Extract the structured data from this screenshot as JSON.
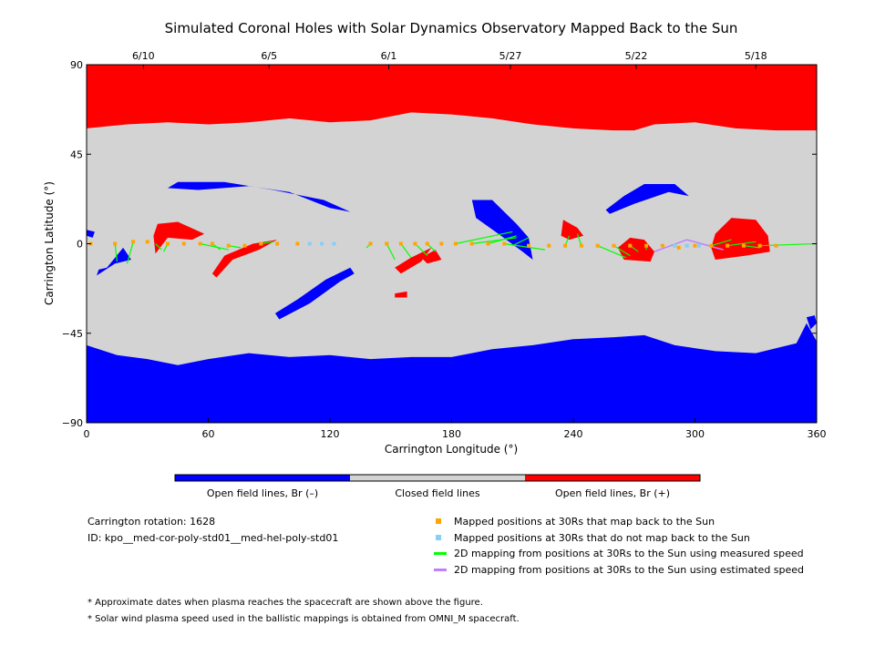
{
  "chart_data": {
    "type": "map",
    "title": "Simulated Coronal Holes with Solar Dynamics Observatory Mapped Back to the Sun",
    "xlabel": "Carrington Longitude (°)",
    "ylabel": "Carrington Latitude (°)",
    "xlim": [
      0,
      360
    ],
    "ylim": [
      -90,
      90
    ],
    "x_ticks": [
      "0",
      "60",
      "120",
      "180",
      "240",
      "300",
      "360"
    ],
    "y_ticks": [
      "90",
      "45",
      "0",
      "-45",
      "-90"
    ],
    "top_dates": [
      {
        "label": "6/10",
        "lon": 28
      },
      {
        "label": "6/5",
        "lon": 90
      },
      {
        "label": "6/1",
        "lon": 149
      },
      {
        "label": "5/27",
        "lon": 209
      },
      {
        "label": "5/22",
        "lon": 271
      },
      {
        "label": "5/18",
        "lon": 330
      }
    ],
    "colorbar": [
      {
        "label": "Open field lines, Br (–)",
        "color": "#0000ff"
      },
      {
        "label": "Closed field lines",
        "color": "#d3d3d3"
      },
      {
        "label": "Open field lines, Br (+)",
        "color": "#ff0000"
      }
    ],
    "colors": {
      "negative": "#0000ff",
      "closed": "#d3d3d3",
      "positive": "#ff0000",
      "mapped": "#ffa500",
      "unmapped": "#87cefa",
      "measured": "#00ff00",
      "estimated": "#bf7fff"
    },
    "north_boundary": [
      [
        0,
        58
      ],
      [
        20,
        60
      ],
      [
        40,
        61
      ],
      [
        60,
        60
      ],
      [
        80,
        61
      ],
      [
        100,
        63
      ],
      [
        120,
        61
      ],
      [
        140,
        62
      ],
      [
        160,
        66
      ],
      [
        180,
        65
      ],
      [
        200,
        63
      ],
      [
        220,
        60
      ],
      [
        240,
        58
      ],
      [
        260,
        57
      ],
      [
        270,
        57
      ],
      [
        280,
        60
      ],
      [
        300,
        61
      ],
      [
        320,
        58
      ],
      [
        340,
        57
      ],
      [
        360,
        57
      ]
    ],
    "south_boundary": [
      [
        0,
        -51
      ],
      [
        15,
        -56
      ],
      [
        30,
        -58
      ],
      [
        45,
        -61
      ],
      [
        60,
        -58
      ],
      [
        80,
        -55
      ],
      [
        100,
        -57
      ],
      [
        120,
        -56
      ],
      [
        140,
        -58
      ],
      [
        160,
        -57
      ],
      [
        180,
        -57
      ],
      [
        200,
        -53
      ],
      [
        220,
        -51
      ],
      [
        240,
        -48
      ],
      [
        260,
        -47
      ],
      [
        275,
        -46
      ],
      [
        290,
        -51
      ],
      [
        310,
        -54
      ],
      [
        330,
        -55
      ],
      [
        350,
        -50
      ],
      [
        355,
        -40
      ],
      [
        360,
        -49
      ]
    ],
    "holes_negative": [
      [
        [
          40,
          28
        ],
        [
          55,
          27
        ],
        [
          80,
          29
        ],
        [
          100,
          26
        ],
        [
          120,
          18
        ],
        [
          130,
          16
        ],
        [
          117,
          22
        ],
        [
          92,
          27
        ],
        [
          68,
          31
        ],
        [
          45,
          31
        ]
      ],
      [
        [
          0,
          7
        ],
        [
          4,
          6
        ],
        [
          3,
          3
        ],
        [
          0,
          4
        ]
      ],
      [
        [
          5,
          -16
        ],
        [
          14,
          -10
        ],
        [
          22,
          -8
        ],
        [
          18,
          -2
        ],
        [
          10,
          -12
        ],
        [
          6,
          -13
        ]
      ],
      [
        [
          95,
          -38
        ],
        [
          110,
          -30
        ],
        [
          125,
          -19
        ],
        [
          132,
          -15
        ],
        [
          130,
          -12
        ],
        [
          118,
          -18
        ],
        [
          104,
          -28
        ],
        [
          93,
          -35
        ]
      ],
      [
        [
          190,
          22
        ],
        [
          200,
          22
        ],
        [
          212,
          10
        ],
        [
          218,
          3
        ],
        [
          220,
          -8
        ],
        [
          215,
          -4
        ],
        [
          203,
          5
        ],
        [
          192,
          13
        ]
      ],
      [
        [
          256,
          17
        ],
        [
          265,
          24
        ],
        [
          275,
          30
        ],
        [
          290,
          30
        ],
        [
          297,
          24
        ],
        [
          287,
          26
        ],
        [
          270,
          20
        ],
        [
          258,
          15
        ]
      ],
      [
        [
          355,
          -37
        ],
        [
          357,
          -43
        ],
        [
          360,
          -40
        ],
        [
          359,
          -36
        ]
      ]
    ],
    "holes_positive": [
      [
        [
          35,
          10
        ],
        [
          45,
          11
        ],
        [
          58,
          5
        ],
        [
          52,
          2
        ],
        [
          40,
          3
        ],
        [
          34,
          -5
        ],
        [
          33,
          4
        ]
      ],
      [
        [
          62,
          -15
        ],
        [
          68,
          -6
        ],
        [
          82,
          0
        ],
        [
          94,
          2
        ],
        [
          85,
          -3
        ],
        [
          72,
          -8
        ],
        [
          64,
          -17
        ]
      ],
      [
        [
          152,
          -12
        ],
        [
          160,
          -7
        ],
        [
          170,
          -2
        ],
        [
          165,
          -9
        ],
        [
          155,
          -15
        ]
      ],
      [
        [
          165,
          -7
        ],
        [
          172,
          -3
        ],
        [
          175,
          -8
        ],
        [
          168,
          -10
        ]
      ],
      [
        [
          152,
          -25
        ],
        [
          158,
          -24
        ],
        [
          158,
          -27
        ],
        [
          152,
          -27
        ]
      ],
      [
        [
          235,
          12
        ],
        [
          242,
          8
        ],
        [
          245,
          4
        ],
        [
          238,
          2
        ],
        [
          234,
          4
        ]
      ],
      [
        [
          262,
          -2
        ],
        [
          268,
          3
        ],
        [
          275,
          2
        ],
        [
          280,
          -4
        ],
        [
          278,
          -9
        ],
        [
          265,
          -8
        ]
      ],
      [
        [
          310,
          5
        ],
        [
          318,
          13
        ],
        [
          330,
          12
        ],
        [
          336,
          4
        ],
        [
          337,
          -4
        ],
        [
          325,
          -6
        ],
        [
          310,
          -8
        ],
        [
          308,
          -2
        ]
      ]
    ],
    "mapped_points": [
      [
        2,
        0
      ],
      [
        14,
        0
      ],
      [
        23,
        1
      ],
      [
        30,
        1
      ],
      [
        40,
        0
      ],
      [
        48,
        0
      ],
      [
        56,
        0
      ],
      [
        62,
        0
      ],
      [
        70,
        -1
      ],
      [
        78,
        -1
      ],
      [
        86,
        0
      ],
      [
        94,
        0
      ],
      [
        104,
        0
      ],
      [
        140,
        0
      ],
      [
        148,
        0
      ],
      [
        155,
        0
      ],
      [
        162,
        0
      ],
      [
        168,
        0
      ],
      [
        175,
        0
      ],
      [
        182,
        0
      ],
      [
        190,
        0
      ],
      [
        198,
        0
      ],
      [
        206,
        0
      ],
      [
        218,
        -1
      ],
      [
        228,
        -1
      ],
      [
        236,
        -1
      ],
      [
        244,
        -1
      ],
      [
        252,
        -1
      ],
      [
        260,
        -1
      ],
      [
        268,
        -1
      ],
      [
        276,
        -1
      ],
      [
        284,
        -1
      ],
      [
        292,
        -2
      ],
      [
        300,
        -1
      ],
      [
        308,
        -1
      ],
      [
        316,
        -1
      ],
      [
        324,
        -1
      ],
      [
        332,
        -1
      ],
      [
        340,
        -1
      ]
    ],
    "unmapped_points": [
      [
        110,
        0
      ],
      [
        116,
        0
      ],
      [
        122,
        0
      ],
      [
        290,
        -1
      ],
      [
        296,
        -1
      ],
      [
        302,
        -1
      ]
    ],
    "measured_lines": [
      [
        [
          14,
          0
        ],
        [
          15,
          -9
        ]
      ],
      [
        [
          23,
          1
        ],
        [
          20,
          -10
        ]
      ],
      [
        [
          34,
          0
        ],
        [
          37,
          -3
        ]
      ],
      [
        [
          40,
          0
        ],
        [
          38,
          -4
        ]
      ],
      [
        [
          56,
          0
        ],
        [
          70,
          -3
        ]
      ],
      [
        [
          62,
          0
        ],
        [
          66,
          -3
        ]
      ],
      [
        [
          70,
          -1
        ],
        [
          76,
          -2
        ]
      ],
      [
        [
          86,
          0
        ],
        [
          92,
          1
        ]
      ],
      [
        [
          140,
          0
        ],
        [
          138,
          -2
        ]
      ],
      [
        [
          148,
          0
        ],
        [
          152,
          -8
        ]
      ],
      [
        [
          155,
          0
        ],
        [
          160,
          -7
        ]
      ],
      [
        [
          162,
          0
        ],
        [
          168,
          -6
        ]
      ],
      [
        [
          168,
          0
        ],
        [
          172,
          -4
        ]
      ],
      [
        [
          182,
          0
        ],
        [
          210,
          6
        ]
      ],
      [
        [
          190,
          0
        ],
        [
          212,
          3
        ]
      ],
      [
        [
          198,
          0
        ],
        [
          212,
          4
        ]
      ],
      [
        [
          210,
          -1
        ],
        [
          218,
          3
        ]
      ],
      [
        [
          206,
          0
        ],
        [
          226,
          -3
        ]
      ],
      [
        [
          236,
          -1
        ],
        [
          238,
          4
        ]
      ],
      [
        [
          244,
          -1
        ],
        [
          242,
          5
        ]
      ],
      [
        [
          252,
          -1
        ],
        [
          266,
          -7
        ]
      ],
      [
        [
          260,
          -1
        ],
        [
          268,
          -6
        ]
      ],
      [
        [
          268,
          -1
        ],
        [
          272,
          -4
        ]
      ],
      [
        [
          276,
          -1
        ],
        [
          276,
          -3
        ]
      ],
      [
        [
          308,
          -1
        ],
        [
          318,
          2
        ]
      ],
      [
        [
          316,
          -1
        ],
        [
          330,
          1
        ]
      ],
      [
        [
          324,
          -1
        ],
        [
          332,
          -2
        ]
      ],
      [
        [
          332,
          -1
        ],
        [
          360,
          0
        ]
      ]
    ],
    "estimated_lines": [
      [
        [
          280,
          -4
        ],
        [
          296,
          2
        ],
        [
          314,
          -3
        ]
      ]
    ]
  },
  "legend": {
    "info_rotation": "Carrington rotation: 1628",
    "info_id": "ID: kpo__med-cor-poly-std01__med-hel-poly-std01",
    "mapped": "Mapped positions at 30Rs that map back to the Sun",
    "unmapped": "Mapped positions at 30Rs that do not map back to the Sun",
    "measured": "2D mapping from positions at 30Rs to the Sun using measured speed",
    "estimated": "2D mapping from positions at 30Rs to the Sun using estimated speed"
  },
  "notes": {
    "note1": "* Approximate dates when plasma reaches the spacecraft are shown above the figure.",
    "note2": "* Solar wind plasma speed used in the ballistic mappings is obtained from OMNI_M spacecraft."
  }
}
